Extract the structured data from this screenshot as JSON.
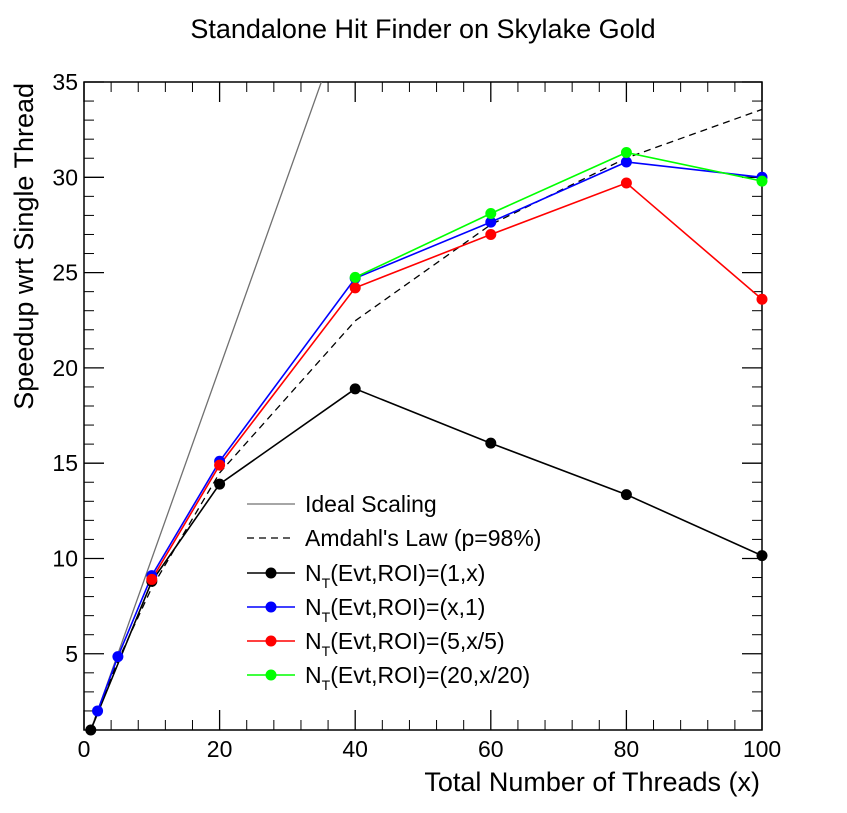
{
  "chart_data": {
    "type": "line",
    "title": "Standalone Hit Finder on Skylake Gold",
    "xlabel": "Total Number of Threads (x)",
    "ylabel": "Speedup wrt Single Thread",
    "xlim": [
      0,
      100
    ],
    "ylim": [
      1,
      35
    ],
    "xticks": [
      0,
      20,
      40,
      60,
      80,
      100
    ],
    "yticks": [
      5,
      10,
      15,
      20,
      25,
      30,
      35
    ],
    "legend_position": "center-bottom",
    "reference_lines": [
      {
        "name": "Ideal Scaling",
        "color": "#707070",
        "dash": "solid",
        "x": [
          0,
          35.2
        ],
        "y": [
          0,
          35.2
        ]
      },
      {
        "name": "Amdahl's Law (p=98%)",
        "color": "#000000",
        "dash": "dashed",
        "x": [
          1,
          2,
          5,
          10,
          20,
          40,
          60,
          80,
          100
        ],
        "y": [
          1,
          1.96,
          4.63,
          8.47,
          14.49,
          22.47,
          27.52,
          31.01,
          33.56
        ]
      }
    ],
    "series": [
      {
        "name": "N_T(Evt,ROI)=(1,x)",
        "label_main": "N",
        "label_sub": "T",
        "label_rest": "(Evt,ROI)=(1,x)",
        "color": "#000000",
        "x": [
          1,
          10,
          20,
          40,
          60,
          80,
          100
        ],
        "y": [
          1.0,
          8.8,
          13.9,
          18.9,
          16.05,
          13.35,
          10.15
        ]
      },
      {
        "name": "N_T(Evt,ROI)=(x,1)",
        "label_main": "N",
        "label_sub": "T",
        "label_rest": "(Evt,ROI)=(x,1)",
        "color": "#0000ff",
        "x": [
          2,
          5,
          10,
          20,
          40,
          60,
          80,
          100
        ],
        "y": [
          2.0,
          4.85,
          9.1,
          15.1,
          24.7,
          27.65,
          30.8,
          30.0
        ]
      },
      {
        "name": "N_T(Evt,ROI)=(5,x/5)",
        "label_main": "N",
        "label_sub": "T",
        "label_rest": "(Evt,ROI)=(5,x/5)",
        "color": "#ff0000",
        "x": [
          10,
          20,
          40,
          60,
          80,
          100
        ],
        "y": [
          8.9,
          14.9,
          24.2,
          27.0,
          29.7,
          23.6
        ]
      },
      {
        "name": "N_T(Evt,ROI)=(20,x/20)",
        "label_main": "N",
        "label_sub": "T",
        "label_rest": "(Evt,ROI)=(20,x/20)",
        "color": "#00ff00",
        "x": [
          40,
          60,
          80,
          100
        ],
        "y": [
          24.75,
          28.1,
          31.3,
          29.8
        ]
      }
    ]
  }
}
